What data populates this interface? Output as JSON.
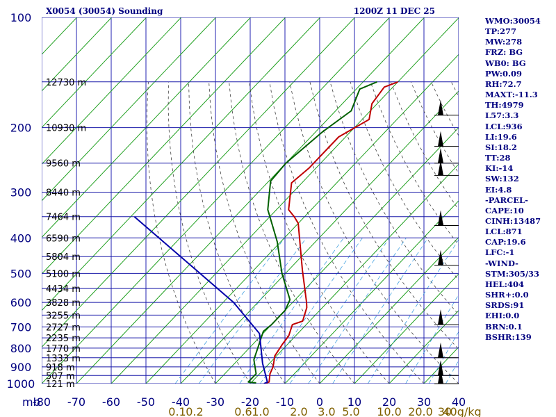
{
  "header": {
    "station": "X0054 (30054) Sounding",
    "time": "1200Z 11 DEC 25"
  },
  "indices": [
    "WMO:30054",
    "TP:277",
    "MW:278",
    "FRZ: BG",
    "WB0: BG",
    "PW:0.09",
    "RH:72.7",
    "MAXT:-11.3",
    "TH:4979",
    "L57:3.3",
    "LCL:936",
    "LI:19.6",
    "SI:18.2",
    "TT:28",
    "KI:-14",
    "SW:132",
    "EI:4.8",
    "-PARCEL-",
    "CAPE:10",
    "CINH:13487",
    "LCL:871",
    "CAP:19.6",
    "LFC:-1",
    "-WIND-",
    "STM:305/33",
    "HEL:404",
    "SHR+:0.0",
    "SRDS:91",
    "EHI:0.0",
    "BRN:0.1",
    "BSHR:139"
  ],
  "chart_data": {
    "type": "line",
    "title": "X0054 (30054) Sounding",
    "subtitle": "1200Z 11 DEC 25",
    "x_axis_unit_label": "mb",
    "temperature_ticks": [
      -80,
      -70,
      -60,
      -50,
      -40,
      -30,
      -20,
      -10,
      0,
      10,
      20,
      30,
      40
    ],
    "temperature_tick_labels": [
      "-80",
      "-70",
      "-60",
      "-50",
      "-40",
      "-30",
      "-20",
      "-10",
      "0",
      "10",
      "20",
      "30",
      "40"
    ],
    "pressure_ticks": [
      100,
      200,
      300,
      400,
      500,
      600,
      700,
      800,
      900,
      1000
    ],
    "pressure_tick_labels": [
      "100",
      "200",
      "300",
      "400",
      "500",
      "600",
      "700",
      "800",
      "900",
      "1000"
    ],
    "pressure_lines": [
      100,
      150,
      200,
      250,
      300,
      350,
      400,
      450,
      500,
      550,
      600,
      650,
      700,
      750,
      800,
      850,
      900,
      950,
      1000
    ],
    "plim": [
      100,
      1000
    ],
    "tlim": [
      -80,
      40
    ],
    "mixing_ratio_labels": [
      "0.1",
      "0.2",
      "0.6",
      "1.0",
      "2.0",
      "3.0",
      "5.0",
      "10.0",
      "20.0",
      "30",
      "40g/kg"
    ],
    "mixing_ratio_label_t": [
      -41,
      -36,
      -22,
      -17,
      -6,
      2,
      9,
      20,
      29,
      36,
      41
    ],
    "height_labels": [
      {
        "p": 150,
        "text": "12730 m"
      },
      {
        "p": 200,
        "text": "10930 m"
      },
      {
        "p": 250,
        "text": "9560 m"
      },
      {
        "p": 300,
        "text": "8440 m"
      },
      {
        "p": 350,
        "text": "7464 m"
      },
      {
        "p": 400,
        "text": "6590 m"
      },
      {
        "p": 450,
        "text": "5804 m"
      },
      {
        "p": 500,
        "text": "5100 m"
      },
      {
        "p": 550,
        "text": "4434 m"
      },
      {
        "p": 600,
        "text": "3828 m"
      },
      {
        "p": 650,
        "text": "3255 m"
      },
      {
        "p": 700,
        "text": "2727 m"
      },
      {
        "p": 750,
        "text": "2235 m"
      },
      {
        "p": 800,
        "text": "1770 m"
      },
      {
        "p": 850,
        "text": "1333 m"
      },
      {
        "p": 900,
        "text": "918 m"
      },
      {
        "p": 950,
        "text": "507 m"
      },
      {
        "p": 1000,
        "text": "121 m"
      }
    ],
    "series": [
      {
        "color": "#c00000",
        "points": [
          [
            150,
            -60.0
          ],
          [
            155,
            -62.5
          ],
          [
            172,
            -61.5
          ],
          [
            190,
            -58.0
          ],
          [
            212,
            -62.0
          ],
          [
            258,
            -62.0
          ],
          [
            283,
            -63.0
          ],
          [
            335,
            -56.5
          ],
          [
            350,
            -53.0
          ],
          [
            365,
            -50.0
          ],
          [
            490,
            -36.0
          ],
          [
            600,
            -26.0
          ],
          [
            620,
            -24.5
          ],
          [
            675,
            -22.0
          ],
          [
            690,
            -24.0
          ],
          [
            740,
            -22.0
          ],
          [
            780,
            -21.5
          ],
          [
            840,
            -20.5
          ],
          [
            900,
            -18.0
          ],
          [
            940,
            -17.0
          ],
          [
            990,
            -15.0
          ],
          [
            1000,
            -16.0
          ]
        ]
      },
      {
        "color": "#006000",
        "points": [
          [
            150,
            -66.0
          ],
          [
            157,
            -69.0
          ],
          [
            180,
            -65.5
          ],
          [
            205,
            -68.0
          ],
          [
            250,
            -70.0
          ],
          [
            280,
            -69.5
          ],
          [
            335,
            -62.5
          ],
          [
            350,
            -60.0
          ],
          [
            410,
            -51.0
          ],
          [
            500,
            -41.0
          ],
          [
            590,
            -31.5
          ],
          [
            630,
            -30.0
          ],
          [
            690,
            -30.0
          ],
          [
            720,
            -30.5
          ],
          [
            860,
            -25.5
          ],
          [
            940,
            -21.0
          ],
          [
            990,
            -21.0
          ],
          [
            995,
            -18.5
          ]
        ]
      },
      {
        "color": "#0000aa",
        "points": [
          [
            350,
            -99.0
          ],
          [
            600,
            -47.0
          ],
          [
            730,
            -31.0
          ],
          [
            880,
            -22.0
          ],
          [
            990,
            -15.5
          ],
          [
            1000,
            -16.0
          ]
        ]
      }
    ],
    "wind_barbs": [
      {
        "p": 185,
        "label": "barb-185"
      },
      {
        "p": 225,
        "label": "barb-225"
      },
      {
        "p": 250,
        "label": "barb-250"
      },
      {
        "p": 270,
        "label": "barb-270"
      },
      {
        "p": 370,
        "label": "barb-370"
      },
      {
        "p": 475,
        "label": "barb-475"
      },
      {
        "p": 690,
        "label": "barb-690"
      },
      {
        "p": 850,
        "label": "barb-850"
      },
      {
        "p": 950,
        "label": "barb-950"
      },
      {
        "p": 1000,
        "label": "barb-1000"
      }
    ],
    "grid": true
  }
}
